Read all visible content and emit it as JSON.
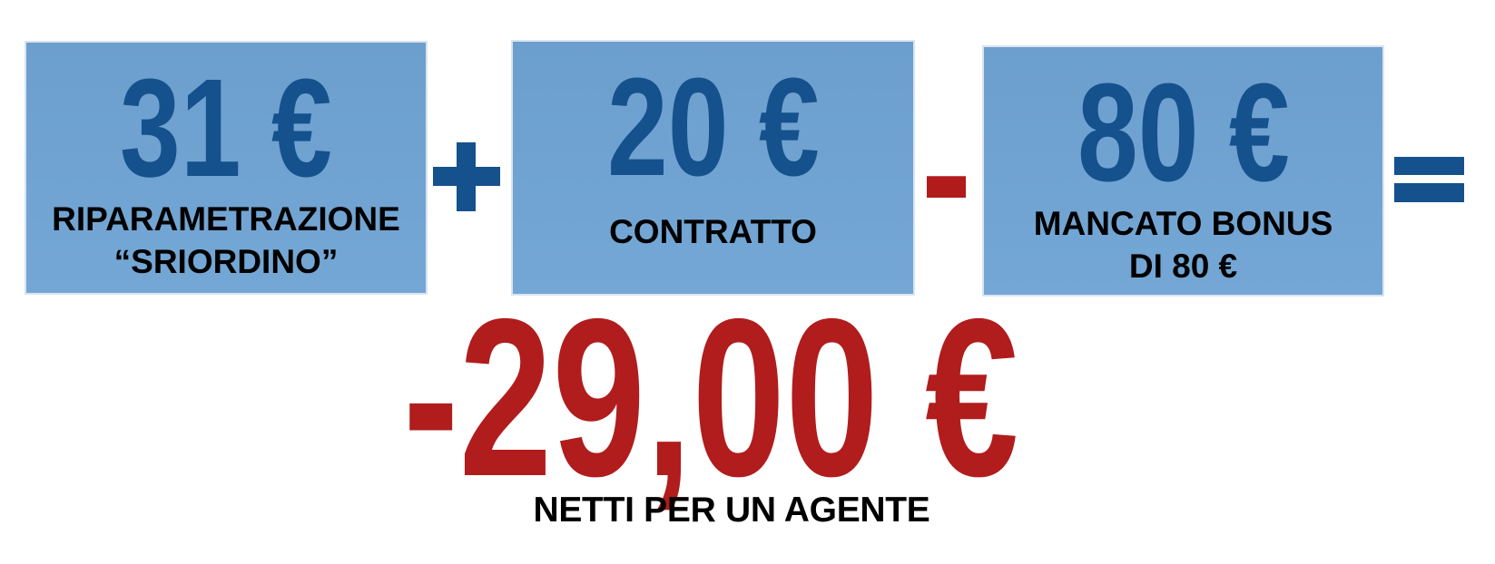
{
  "slide": {
    "terms": [
      {
        "amount": "31 €",
        "label_lines": [
          "RIPARAMETRAZIONE",
          "“SRIORDINO”"
        ]
      },
      {
        "amount": "20 €",
        "label_lines": [
          "CONTRATTO"
        ]
      },
      {
        "amount": "80 €",
        "label_lines": [
          "MANCATO BONUS",
          "DI 80 €"
        ]
      }
    ],
    "operators": {
      "plus": "+",
      "minus": "−",
      "equals": "="
    },
    "result": {
      "amount": "-29,00 €",
      "label": "NETTI PER UN AGENTE"
    },
    "icons": {
      "plus-icon": "css-cross-shape",
      "minus-icon": "css-bar-shape",
      "equals-icon": "css-double-bar-shape"
    },
    "colors": {
      "box_fill": "#6FA3D1",
      "box_border": "#D9E4EF",
      "amount_blue": "#15518D",
      "operator_blue": "#15518D",
      "operator_red": "#B11B1B",
      "result_red": "#B11C1C",
      "label_black": "#000000",
      "background": "#FFFFFF"
    }
  }
}
